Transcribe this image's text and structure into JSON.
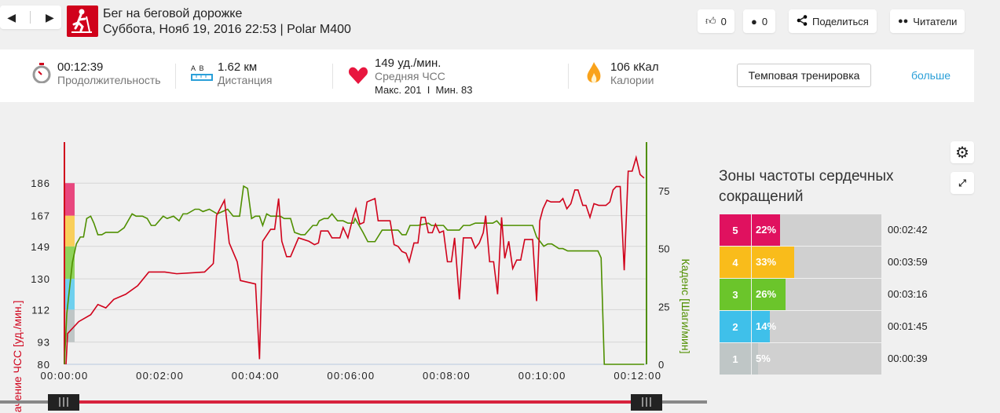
{
  "header": {
    "title": "Бег на беговой дорожке",
    "subtitle": "Суббота, Нояб 19, 2016 22:53 | Polar M400",
    "likes": "0",
    "comments": "0",
    "share_label": "Поделиться",
    "followers_label": "Читатели"
  },
  "stats": {
    "duration": {
      "value": "00:12:39",
      "label": "Продолжительность"
    },
    "distance": {
      "ab": "A  B",
      "value": "1.62 км",
      "label": "Дистанция"
    },
    "hr": {
      "value": "149 уд./мин.",
      "label": "Средняя ЧСС",
      "max": "Макс. 201",
      "sep": "I",
      "min": "Мин. 83"
    },
    "calories": {
      "value": "106 кКал",
      "label": "Калории"
    },
    "sport_type_button": "Темповая тренировка",
    "more_link": "больше"
  },
  "colors": {
    "hr": "#d0021b",
    "cadence": "#4f8f00",
    "accent": "#2a9fd8"
  },
  "zones": {
    "title": "Зоны частоты сердечных сокращений",
    "rows": [
      {
        "zone": "5",
        "pct_label": "22%",
        "pct": 22,
        "time": "00:02:42",
        "color": "#e0115f"
      },
      {
        "zone": "4",
        "pct_label": "33%",
        "pct": 33,
        "time": "00:03:59",
        "color": "#f9bc1b"
      },
      {
        "zone": "3",
        "pct_label": "26%",
        "pct": 26,
        "time": "00:03:16",
        "color": "#6bc52b"
      },
      {
        "zone": "2",
        "pct_label": "14%",
        "pct": 14,
        "time": "00:01:45",
        "color": "#3fc0ea"
      },
      {
        "zone": "1",
        "pct_label": "5%",
        "pct": 5,
        "time": "00:00:39",
        "color": "#bfc6c6"
      }
    ]
  },
  "chart_data": {
    "type": "line",
    "ylabel": "Значение ЧСС [уд./мин.]",
    "y2label": "Каденс [Шаги/мин]",
    "xlim": [
      0,
      731
    ],
    "ylim": [
      80,
      210
    ],
    "y2lim": [
      0,
      96
    ],
    "xticks": [
      {
        "v": 0,
        "label": "00:00:00"
      },
      {
        "v": 120,
        "label": "00:02:00"
      },
      {
        "v": 240,
        "label": "00:04:00"
      },
      {
        "v": 360,
        "label": "00:06:00"
      },
      {
        "v": 480,
        "label": "00:08:00"
      },
      {
        "v": 600,
        "label": "00:10:00"
      },
      {
        "v": 720,
        "label": "00:12:00"
      }
    ],
    "yticks": [
      80,
      93,
      112,
      130,
      149,
      167,
      186
    ],
    "y2ticks": [
      0,
      25,
      50,
      75
    ],
    "zone_bands": [
      {
        "from": 93,
        "to": 112,
        "color": "#bfc6c6"
      },
      {
        "from": 112,
        "to": 130,
        "color": "#6fd0ee"
      },
      {
        "from": 130,
        "to": 149,
        "color": "#8fd35a"
      },
      {
        "from": 149,
        "to": 167,
        "color": "#f9cf5a"
      },
      {
        "from": 167,
        "to": 186,
        "color": "#e8477e"
      }
    ],
    "series": [
      {
        "name": "ЧСС",
        "axis": "left",
        "points": [
          [
            2,
            80
          ],
          [
            4,
            98
          ],
          [
            18,
            105
          ],
          [
            33,
            109
          ],
          [
            42,
            115
          ],
          [
            52,
            113
          ],
          [
            62,
            118
          ],
          [
            77,
            121
          ],
          [
            92,
            126
          ],
          [
            106,
            134
          ],
          [
            126,
            134
          ],
          [
            141,
            133
          ],
          [
            176,
            134
          ],
          [
            185,
            138
          ],
          [
            187,
            139
          ],
          [
            191,
            167
          ],
          [
            201,
            176
          ],
          [
            207,
            151
          ],
          [
            217,
            140
          ],
          [
            221,
            129
          ],
          [
            240,
            127
          ],
          [
            245,
            83
          ],
          [
            249,
            152
          ],
          [
            259,
            159
          ],
          [
            264,
            159
          ],
          [
            269,
            177
          ],
          [
            273,
            152
          ],
          [
            279,
            143
          ],
          [
            284,
            143
          ],
          [
            294,
            154
          ],
          [
            307,
            152
          ],
          [
            314,
            150
          ],
          [
            319,
            151
          ],
          [
            322,
            158
          ],
          [
            331,
            158
          ],
          [
            336,
            154
          ],
          [
            346,
            154
          ],
          [
            350,
            160
          ],
          [
            356,
            154
          ],
          [
            363,
            167
          ],
          [
            366,
            171
          ],
          [
            371,
            162
          ],
          [
            376,
            163
          ],
          [
            380,
            175
          ],
          [
            390,
            177
          ],
          [
            394,
            164
          ],
          [
            409,
            164
          ],
          [
            414,
            150
          ],
          [
            419,
            149
          ],
          [
            424,
            146
          ],
          [
            429,
            145
          ],
          [
            433,
            140
          ],
          [
            439,
            151
          ],
          [
            444,
            151
          ],
          [
            448,
            166
          ],
          [
            453,
            166
          ],
          [
            457,
            157
          ],
          [
            462,
            157
          ],
          [
            466,
            162
          ],
          [
            471,
            157
          ],
          [
            476,
            158
          ],
          [
            481,
            140
          ],
          [
            486,
            140
          ],
          [
            490,
            154
          ],
          [
            496,
            118
          ],
          [
            501,
            154
          ],
          [
            511,
            154
          ],
          [
            516,
            148
          ],
          [
            521,
            151
          ],
          [
            526,
            157
          ],
          [
            529,
            167
          ],
          [
            534,
            140
          ],
          [
            539,
            140
          ],
          [
            544,
            121
          ],
          [
            549,
            166
          ],
          [
            553,
            142
          ],
          [
            558,
            152
          ],
          [
            563,
            136
          ],
          [
            568,
            141
          ],
          [
            573,
            141
          ],
          [
            578,
            153
          ],
          [
            588,
            153
          ],
          [
            593,
            117
          ],
          [
            597,
            164
          ],
          [
            601,
            171
          ],
          [
            606,
            176
          ],
          [
            611,
            175
          ],
          [
            622,
            175
          ],
          [
            626,
            177
          ],
          [
            631,
            171
          ],
          [
            636,
            174
          ],
          [
            641,
            182
          ],
          [
            645,
            182
          ],
          [
            651,
            173
          ],
          [
            655,
            173
          ],
          [
            660,
            166
          ],
          [
            665,
            174
          ],
          [
            671,
            173
          ],
          [
            680,
            173
          ],
          [
            685,
            175
          ],
          [
            689,
            182
          ],
          [
            693,
            184
          ],
          [
            698,
            184
          ],
          [
            703,
            135
          ],
          [
            708,
            193
          ],
          [
            713,
            193
          ],
          [
            718,
            201
          ],
          [
            723,
            191
          ],
          [
            728,
            189
          ]
        ]
      },
      {
        "name": "Каденс",
        "axis": "right",
        "points": [
          [
            0,
            0
          ],
          [
            3,
            22
          ],
          [
            10,
            44
          ],
          [
            15,
            52
          ],
          [
            20,
            55
          ],
          [
            24,
            55
          ],
          [
            28,
            63
          ],
          [
            33,
            64
          ],
          [
            37,
            61
          ],
          [
            42,
            56
          ],
          [
            47,
            56
          ],
          [
            52,
            57
          ],
          [
            67,
            57
          ],
          [
            75,
            59
          ],
          [
            85,
            65
          ],
          [
            90,
            64
          ],
          [
            98,
            64
          ],
          [
            104,
            63
          ],
          [
            109,
            60
          ],
          [
            114,
            60
          ],
          [
            124,
            64
          ],
          [
            129,
            63
          ],
          [
            137,
            64
          ],
          [
            144,
            62
          ],
          [
            149,
            65
          ],
          [
            154,
            65
          ],
          [
            164,
            67
          ],
          [
            169,
            67
          ],
          [
            174,
            66
          ],
          [
            182,
            67
          ],
          [
            192,
            65
          ],
          [
            205,
            67
          ],
          [
            212,
            64
          ],
          [
            220,
            64
          ],
          [
            225,
            77
          ],
          [
            230,
            76
          ],
          [
            235,
            63
          ],
          [
            240,
            64
          ],
          [
            245,
            64
          ],
          [
            249,
            60
          ],
          [
            254,
            65
          ],
          [
            259,
            64
          ],
          [
            271,
            64
          ],
          [
            276,
            63
          ],
          [
            284,
            63
          ],
          [
            289,
            57
          ],
          [
            297,
            56
          ],
          [
            302,
            56
          ],
          [
            307,
            58
          ],
          [
            312,
            60
          ],
          [
            317,
            60
          ],
          [
            320,
            62
          ],
          [
            326,
            63
          ],
          [
            331,
            63
          ],
          [
            336,
            65
          ],
          [
            343,
            62
          ],
          [
            350,
            62
          ],
          [
            356,
            61
          ],
          [
            363,
            61
          ],
          [
            365,
            63
          ],
          [
            370,
            60
          ],
          [
            375,
            57
          ],
          [
            381,
            53
          ],
          [
            390,
            53
          ],
          [
            399,
            58
          ],
          [
            409,
            58
          ],
          [
            419,
            58
          ],
          [
            424,
            56
          ],
          [
            429,
            56
          ],
          [
            434,
            60
          ],
          [
            439,
            60
          ],
          [
            444,
            60
          ],
          [
            457,
            61
          ],
          [
            461,
            60
          ],
          [
            476,
            60
          ],
          [
            481,
            58
          ],
          [
            496,
            58
          ],
          [
            501,
            60
          ],
          [
            509,
            60
          ],
          [
            516,
            61
          ],
          [
            538,
            61
          ],
          [
            543,
            62
          ],
          [
            548,
            60
          ],
          [
            588,
            60
          ],
          [
            593,
            55
          ],
          [
            602,
            51
          ],
          [
            607,
            52
          ],
          [
            612,
            52
          ],
          [
            621,
            50
          ],
          [
            626,
            50
          ],
          [
            632,
            49
          ],
          [
            670,
            49
          ],
          [
            674,
            46
          ],
          [
            678,
            0
          ],
          [
            728,
            0
          ]
        ]
      }
    ]
  }
}
